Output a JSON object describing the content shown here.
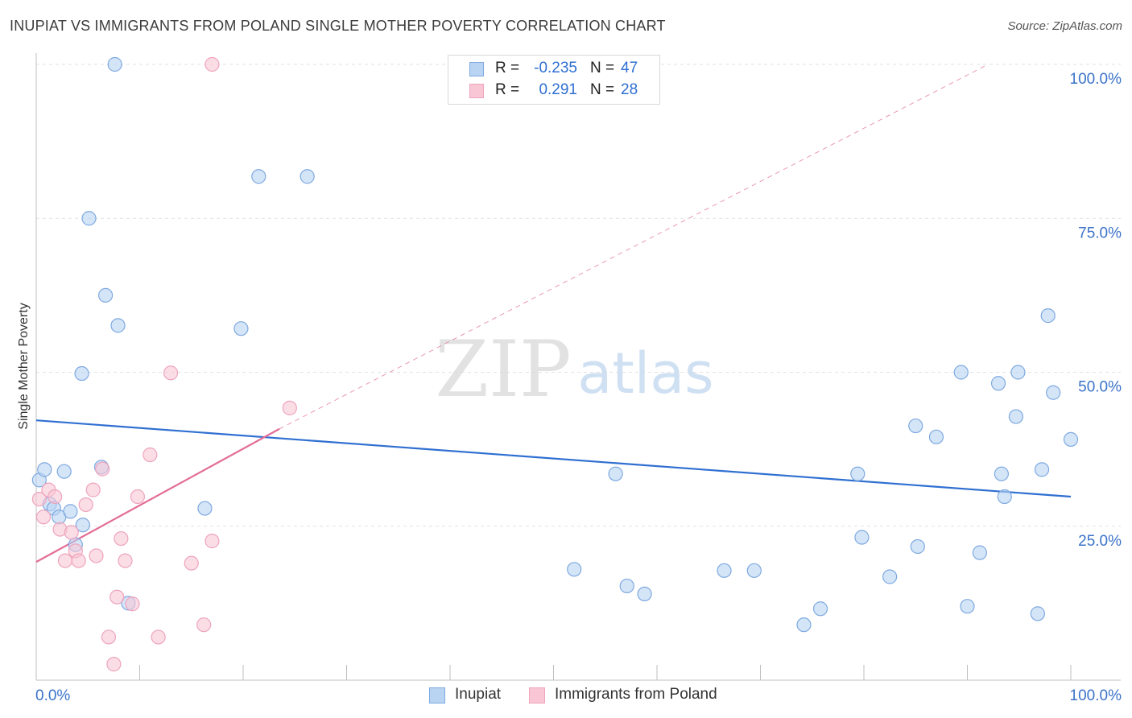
{
  "header": {
    "title": "INUPIAT VS IMMIGRANTS FROM POLAND SINGLE MOTHER POVERTY CORRELATION CHART",
    "source": "Source: ZipAtlas.com"
  },
  "watermark": {
    "zip": "ZIP",
    "atlas": "atlas"
  },
  "colors": {
    "blue_fill": "#b9d3f3",
    "blue_stroke": "#7ea9e0",
    "blue_line": "#2f6fd1",
    "pink_fill": "#f8c6d5",
    "pink_stroke": "#eea4bd",
    "pink_line": "#e36d97",
    "label_blue": "#3b73c9"
  },
  "legend_stats": [
    {
      "r_label": "R =",
      "r_value": "-0.235",
      "n_label": "N =",
      "n_value": "47"
    },
    {
      "r_label": "R =",
      "r_value": "0.291",
      "n_label": "N =",
      "n_value": "28"
    }
  ],
  "bottom_legend": [
    "Inupiat",
    "Immigrants from Poland"
  ],
  "chart_data": {
    "type": "scatter",
    "title": "INUPIAT VS IMMIGRANTS FROM POLAND SINGLE MOTHER POVERTY CORRELATION CHART",
    "xlabel": "",
    "ylabel": "Single Mother Poverty",
    "xlim": [
      0,
      100
    ],
    "ylim": [
      0,
      100
    ],
    "x_tick_labels": [
      "0.0%",
      "100.0%"
    ],
    "y_tick_labels": [
      "100.0%",
      "75.0%",
      "50.0%",
      "25.0%"
    ],
    "y_ticks": [
      100,
      75,
      50,
      25
    ],
    "grid": true,
    "series": [
      {
        "name": "Inupiat",
        "r": -0.235,
        "n": 47,
        "trend": {
          "x": [
            0,
            100
          ],
          "y": [
            42.2,
            29.8
          ]
        },
        "points": [
          [
            0.3,
            32.5
          ],
          [
            0.8,
            34.2
          ],
          [
            1.3,
            28.6
          ],
          [
            1.7,
            27.9
          ],
          [
            2.2,
            26.5
          ],
          [
            2.7,
            33.9
          ],
          [
            3.3,
            27.4
          ],
          [
            3.8,
            22.0
          ],
          [
            4.5,
            25.2
          ],
          [
            4.4,
            49.8
          ],
          [
            5.1,
            75.0
          ],
          [
            6.3,
            34.6
          ],
          [
            6.7,
            62.5
          ],
          [
            7.6,
            100.0
          ],
          [
            7.9,
            57.6
          ],
          [
            8.9,
            12.5
          ],
          [
            16.3,
            27.9
          ],
          [
            19.8,
            57.1
          ],
          [
            21.5,
            81.8
          ],
          [
            26.2,
            81.8
          ],
          [
            52.0,
            18.0
          ],
          [
            56.0,
            33.5
          ],
          [
            57.1,
            15.3
          ],
          [
            58.8,
            14.0
          ],
          [
            66.5,
            17.8
          ],
          [
            69.4,
            17.8
          ],
          [
            74.2,
            9.0
          ],
          [
            75.8,
            11.6
          ],
          [
            79.4,
            33.5
          ],
          [
            79.8,
            23.2
          ],
          [
            82.5,
            16.8
          ],
          [
            85.0,
            41.3
          ],
          [
            85.2,
            21.7
          ],
          [
            87.0,
            39.5
          ],
          [
            89.4,
            50.0
          ],
          [
            90.0,
            12.0
          ],
          [
            91.2,
            20.7
          ],
          [
            93.0,
            48.2
          ],
          [
            93.3,
            33.5
          ],
          [
            93.6,
            29.8
          ],
          [
            94.7,
            42.8
          ],
          [
            94.9,
            50.0
          ],
          [
            96.8,
            10.8
          ],
          [
            97.8,
            59.2
          ],
          [
            98.3,
            46.7
          ],
          [
            97.2,
            34.2
          ],
          [
            100.0,
            39.1
          ]
        ]
      },
      {
        "name": "Immigrants from Poland",
        "r": 0.291,
        "n": 28,
        "trend": {
          "x": [
            0,
            23.5
          ],
          "y": [
            19.2,
            40.8
          ],
          "dashed_extension": {
            "x": [
              23.5,
              92.0
            ],
            "y": [
              40.8,
              100.0
            ]
          }
        },
        "points": [
          [
            0.3,
            29.4
          ],
          [
            0.7,
            26.5
          ],
          [
            1.2,
            30.9
          ],
          [
            1.8,
            29.8
          ],
          [
            2.3,
            24.5
          ],
          [
            2.8,
            19.4
          ],
          [
            3.4,
            24.0
          ],
          [
            3.8,
            21.0
          ],
          [
            4.1,
            19.4
          ],
          [
            4.8,
            28.5
          ],
          [
            5.5,
            30.9
          ],
          [
            5.8,
            20.2
          ],
          [
            6.4,
            34.3
          ],
          [
            7.0,
            7.0
          ],
          [
            7.5,
            2.6
          ],
          [
            7.8,
            13.5
          ],
          [
            8.2,
            23.0
          ],
          [
            8.6,
            19.4
          ],
          [
            9.3,
            12.4
          ],
          [
            9.8,
            29.8
          ],
          [
            11.0,
            36.6
          ],
          [
            11.8,
            7.0
          ],
          [
            13.0,
            49.9
          ],
          [
            15.0,
            19.0
          ],
          [
            16.2,
            9.0
          ],
          [
            17.0,
            22.6
          ],
          [
            17.0,
            100.0
          ],
          [
            24.5,
            44.2
          ]
        ]
      }
    ]
  }
}
